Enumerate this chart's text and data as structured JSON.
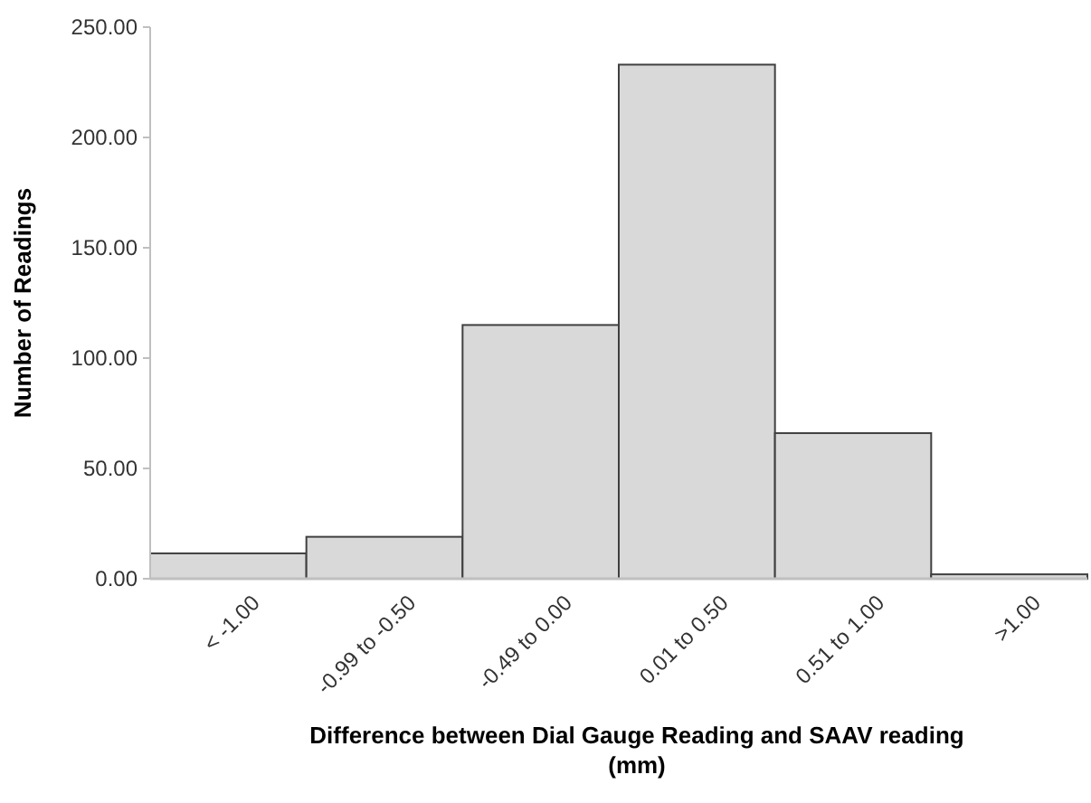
{
  "chart_data": {
    "type": "bar",
    "xlabel": "Difference between Dial Gauge Reading and SAAV reading (mm)",
    "ylabel": "Number of Readings",
    "categories": [
      "< -1.00",
      "-0.99 to -0.50",
      "-0.49 to 0.00",
      "0.01 to 0.50",
      "0.51 to 1.00",
      ">1.00"
    ],
    "values": [
      11.5,
      19,
      115,
      233,
      66,
      2
    ],
    "color": "#d9d9d9",
    "ylim": [
      0,
      250
    ],
    "yticks": [
      {
        "value": 0,
        "label": "0.00"
      },
      {
        "value": 50,
        "label": "50.00"
      },
      {
        "value": 100,
        "label": "100.00"
      },
      {
        "value": 150,
        "label": "150.00"
      },
      {
        "value": 200,
        "label": "200.00"
      },
      {
        "value": 250,
        "label": "250.00"
      }
    ],
    "grid": false
  }
}
